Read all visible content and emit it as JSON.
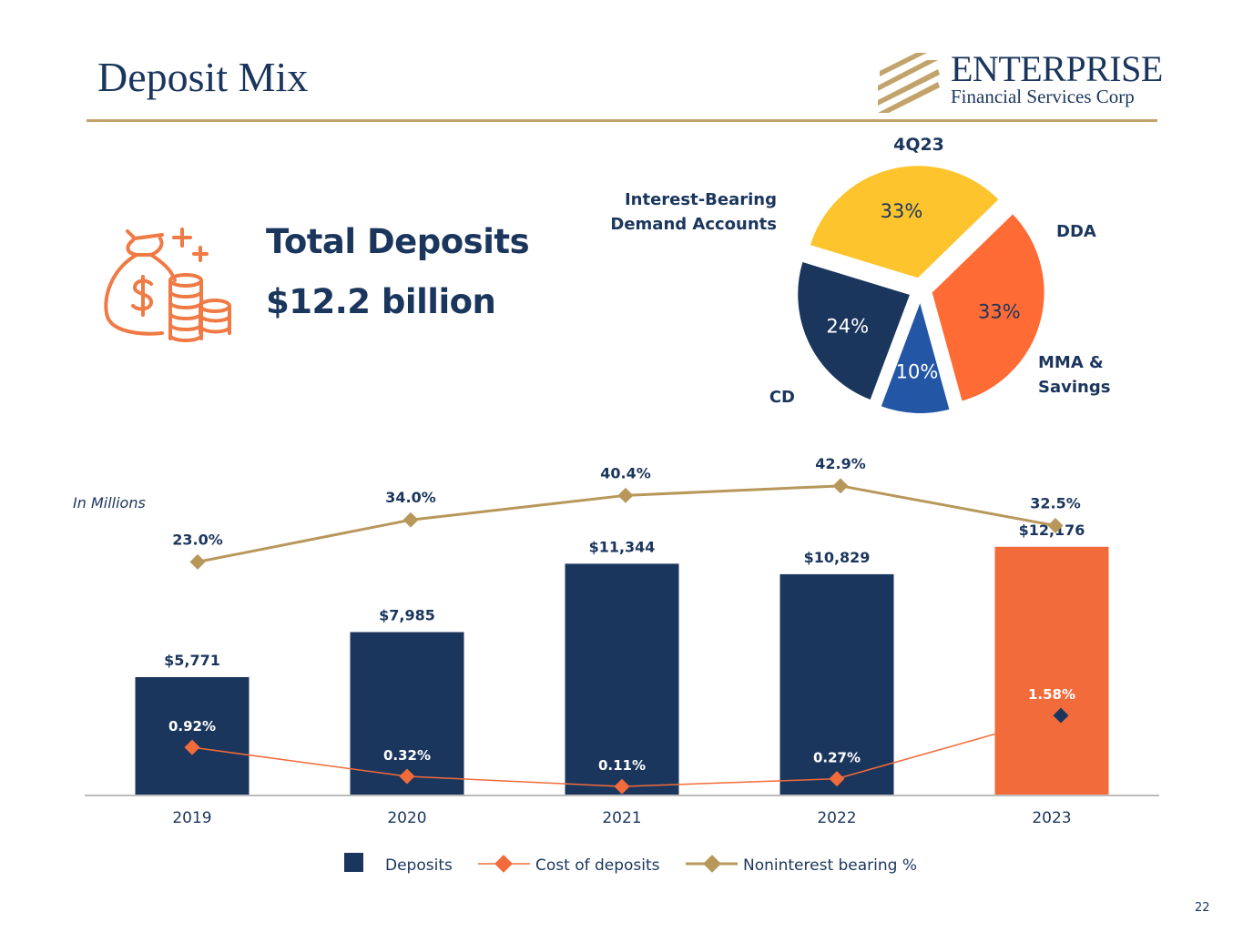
{
  "header": {
    "title": "Deposit Mix",
    "logo_word": "ENTERPRISE",
    "logo_sub": "Financial Services Corp"
  },
  "summary": {
    "label": "Total Deposits",
    "value": "$12.2 billion",
    "icon": "money-bag-coins-icon"
  },
  "pie": {
    "title": "4Q23",
    "slices": [
      {
        "label": "DDA",
        "value": 33,
        "value_label": "33%",
        "color": "#fec42d"
      },
      {
        "label": "MMA & Savings",
        "label_lines": [
          "MMA &",
          "Savings"
        ],
        "value": 33,
        "value_label": "33%",
        "color": "#ff6b35"
      },
      {
        "label": "CD",
        "value": 10,
        "value_label": "10%",
        "color": "#2456a6"
      },
      {
        "label": "Interest-Bearing Demand Accounts",
        "label_lines": [
          "Interest-Bearing",
          "Demand Accounts"
        ],
        "value": 24,
        "value_label": "24%",
        "color": "#1b365d"
      }
    ]
  },
  "chart_data": {
    "type": "bar",
    "note": "In Millions",
    "categories": [
      "2019",
      "2020",
      "2021",
      "2022",
      "2023"
    ],
    "series": [
      {
        "name": "Deposits",
        "kind": "bar",
        "values": [
          5771,
          7985,
          11344,
          10829,
          12176
        ],
        "labels": [
          "$5,771",
          "$7,985",
          "$11,344",
          "$10,829",
          "$12,176"
        ],
        "colors": [
          "#1b365d",
          "#1b365d",
          "#1b365d",
          "#1b365d",
          "#f26b3a"
        ]
      },
      {
        "name": "Cost of deposits",
        "kind": "line",
        "values": [
          0.92,
          0.32,
          0.11,
          0.27,
          1.58
        ],
        "labels": [
          "0.92%",
          "0.32%",
          "0.11%",
          "0.27%",
          "1.58%"
        ],
        "color": "#f26b3a",
        "last_marker_color": "#1b365d"
      },
      {
        "name": "Noninterest bearing %",
        "kind": "line",
        "values": [
          23.0,
          34.0,
          40.4,
          42.9,
          32.5
        ],
        "labels": [
          "23.0%",
          "34.0%",
          "40.4%",
          "42.9%",
          "32.5%"
        ],
        "color": "#b8975a"
      }
    ],
    "legend": [
      "Deposits",
      "Cost of deposits",
      "Noninterest bearing %"
    ],
    "ylim": [
      0,
      14000
    ]
  },
  "footer": {
    "page_number": "22"
  }
}
